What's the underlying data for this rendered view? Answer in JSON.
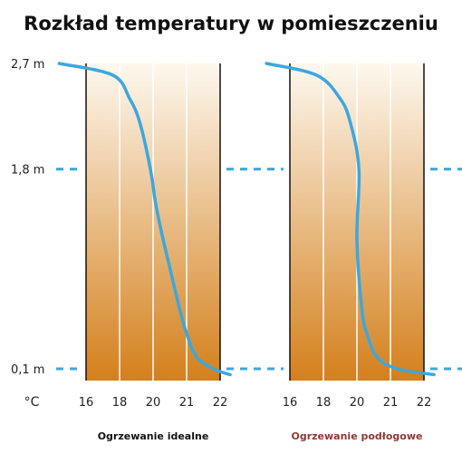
{
  "chart_data": {
    "type": "line",
    "title": "Rozkład temperatury w pomieszczeniu",
    "x_unit_label": "°C",
    "x_ticks": [
      "16",
      "18",
      "20",
      "21",
      "22"
    ],
    "y_ticks": [
      {
        "label": "2,7 m",
        "value": 2.7
      },
      {
        "label": "1,8 m",
        "value": 1.8
      },
      {
        "label": "0,1 m",
        "value": 0.1
      }
    ],
    "reference_lines_m": [
      1.8,
      0.1
    ],
    "grid": true,
    "colors": {
      "curve": "#3da7dd",
      "reference": "#3da7dd",
      "gradient_top": "#fdf8ef",
      "gradient_bottom": "#d4801c",
      "panel_label_ideal": "#111111",
      "panel_label_floor": "#8b3a35"
    },
    "panels": [
      {
        "label": "Ogrzewanie idealne",
        "series": {
          "height_m": [
            2.7,
            2.6,
            2.4,
            2.2,
            1.8,
            1.5,
            1.2,
            0.9,
            0.6,
            0.4,
            0.2,
            0.1,
            0.05
          ],
          "temp_index": [
            -0.8,
            0.8,
            1.3,
            1.6,
            1.92,
            2.08,
            2.3,
            2.55,
            2.8,
            3.0,
            3.3,
            3.8,
            4.3
          ]
        }
      },
      {
        "label": "Ogrzewanie podłogowe",
        "series": {
          "height_m": [
            2.7,
            2.6,
            2.4,
            2.2,
            1.8,
            1.2,
            0.6,
            0.4,
            0.2,
            0.1,
            0.05
          ],
          "temp_index": [
            -0.7,
            0.8,
            1.5,
            1.8,
            2.06,
            2.0,
            2.15,
            2.3,
            2.6,
            3.2,
            4.3
          ]
        }
      }
    ]
  }
}
